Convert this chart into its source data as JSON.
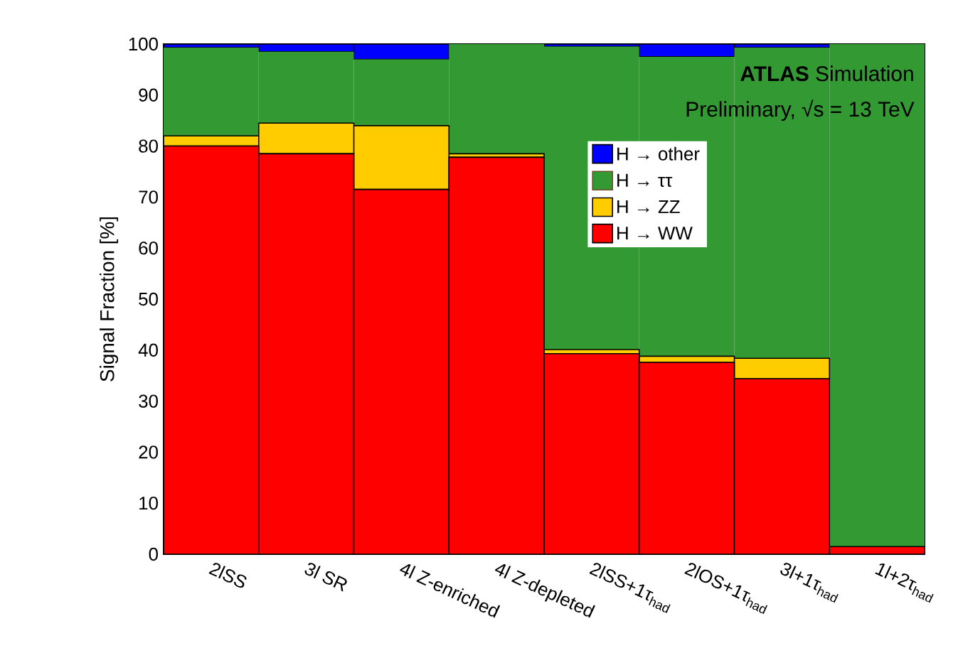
{
  "chart_data": {
    "type": "bar",
    "stacked": true,
    "ylabel": "Signal Fraction [%]",
    "categories": [
      "2lSS",
      "3l SR",
      "4l Z-enriched",
      "4l Z-depleted",
      "2lSS+1τ$_{had}$",
      "2lOS+1τ$_{had}$",
      "3l+1τ$_{had}$",
      "1l+2τ$_{had}$"
    ],
    "series": [
      {
        "name": "H → WW",
        "color": "#ff0000",
        "values": [
          80,
          78.5,
          71.5,
          77.8,
          39.3,
          37.6,
          34.4,
          1.5
        ]
      },
      {
        "name": "H → ZZ",
        "color": "#ffcc00",
        "values": [
          2,
          6,
          12.5,
          0.7,
          0.8,
          1.2,
          4,
          0
        ]
      },
      {
        "name": "H → ττ",
        "color": "#339933",
        "values": [
          17.3,
          14,
          13,
          21.5,
          59.4,
          58.7,
          60.9,
          98.5
        ]
      },
      {
        "name": "H → other",
        "color": "#0000ff",
        "values": [
          0.7,
          1.5,
          3,
          0,
          0.5,
          2.5,
          0.7,
          0
        ]
      }
    ],
    "ylim": [
      0,
      100
    ],
    "yticks": [
      0,
      10,
      20,
      30,
      40,
      50,
      60,
      70,
      80,
      90,
      100
    ],
    "legend": "top right",
    "annotations": [
      "**ATLAS** Simulation",
      "Preliminary, √s = 13 TeV"
    ]
  }
}
